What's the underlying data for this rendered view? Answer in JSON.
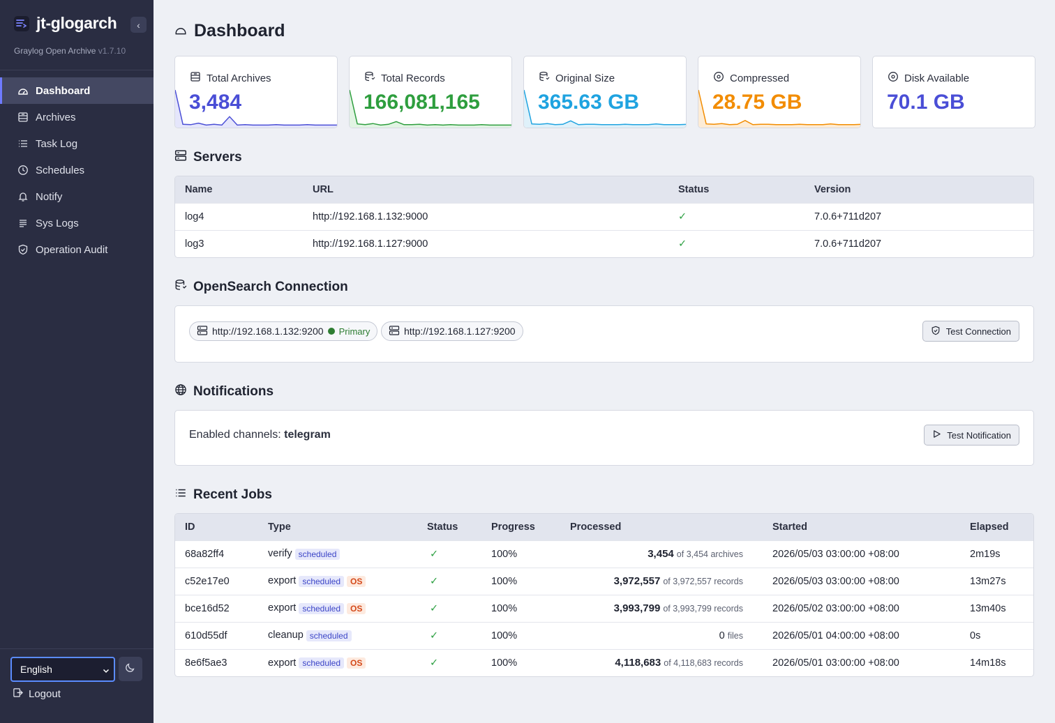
{
  "app": {
    "title": "jt-glogarch",
    "subtitle": "Graylog Open Archive",
    "version": "v1.7.10"
  },
  "sidebar": {
    "collapse_glyph": "‹",
    "items": [
      {
        "label": "Dashboard",
        "icon": "dashboard-icon",
        "active": true
      },
      {
        "label": "Archives",
        "icon": "archive-icon"
      },
      {
        "label": "Task Log",
        "icon": "list-icon"
      },
      {
        "label": "Schedules",
        "icon": "clock-icon"
      },
      {
        "label": "Notify",
        "icon": "bell-icon"
      },
      {
        "label": "Sys Logs",
        "icon": "lines-icon"
      },
      {
        "label": "Operation Audit",
        "icon": "shield-icon"
      }
    ],
    "language": "English",
    "logout": "Logout"
  },
  "page": {
    "title": "Dashboard"
  },
  "stats": [
    {
      "label": "Total Archives",
      "value": "3,484",
      "color": "#4a4ed6",
      "fill": "#e5e6fb",
      "series": [
        95,
        5,
        4,
        8,
        3,
        5,
        3,
        25,
        3,
        4,
        3,
        3,
        3,
        4,
        3,
        3,
        3,
        4,
        3,
        3,
        3,
        3
      ]
    },
    {
      "label": "Total Records",
      "value": "166,081,165",
      "color": "#2e9e3e",
      "fill": "#e2f4e4",
      "series": [
        95,
        6,
        4,
        7,
        3,
        5,
        12,
        4,
        4,
        5,
        3,
        4,
        3,
        4,
        3,
        3,
        3,
        4,
        3,
        3,
        3,
        3
      ]
    },
    {
      "label": "Original Size",
      "value": "365.63 GB",
      "color": "#1fa3e0",
      "fill": "#dff1fa",
      "series": [
        95,
        6,
        5,
        7,
        4,
        5,
        14,
        4,
        5,
        5,
        4,
        4,
        4,
        5,
        4,
        4,
        4,
        6,
        4,
        4,
        4,
        5
      ]
    },
    {
      "label": "Compressed",
      "value": "28.75 GB",
      "color": "#f28c00",
      "fill": "#fdecd6",
      "series": [
        95,
        6,
        5,
        7,
        4,
        5,
        15,
        4,
        5,
        5,
        4,
        4,
        4,
        5,
        4,
        4,
        4,
        6,
        4,
        4,
        4,
        5
      ]
    },
    {
      "label": "Disk Available",
      "value": "70.1 GB",
      "color": "#4a4ed6",
      "fill": "none",
      "series": []
    }
  ],
  "servers": {
    "title": "Servers",
    "columns": [
      "Name",
      "URL",
      "Status",
      "Version"
    ],
    "rows": [
      {
        "name": "log4",
        "url": "http://192.168.1.132:9000",
        "status": "✓",
        "version": "7.0.6+711d207"
      },
      {
        "name": "log3",
        "url": "http://192.168.1.127:9000",
        "status": "✓",
        "version": "7.0.6+711d207"
      }
    ]
  },
  "opensearch": {
    "title": "OpenSearch Connection",
    "nodes": [
      {
        "url": "http://192.168.1.132:9200",
        "tag": "Primary"
      },
      {
        "url": "http://192.168.1.127:9200",
        "tag": ""
      }
    ],
    "test_button": "Test Connection"
  },
  "notifications": {
    "title": "Notifications",
    "label": "Enabled channels:",
    "channels": "telegram",
    "test_button": "Test Notification"
  },
  "jobs": {
    "title": "Recent Jobs",
    "columns": [
      "ID",
      "Type",
      "Status",
      "Progress",
      "Processed",
      "Started",
      "Elapsed"
    ],
    "rows": [
      {
        "id": "68a82ff4",
        "type": "verify",
        "badges": [
          "scheduled"
        ],
        "status": "✓",
        "progress": "100%",
        "processed": "3,454",
        "of": "of 3,454 archives",
        "started": "2026/05/03 03:00:00 +08:00",
        "elapsed": "2m19s"
      },
      {
        "id": "c52e17e0",
        "type": "export",
        "badges": [
          "scheduled",
          "OS"
        ],
        "status": "✓",
        "progress": "100%",
        "processed": "3,972,557",
        "of": "of 3,972,557 records",
        "started": "2026/05/03 03:00:00 +08:00",
        "elapsed": "13m27s"
      },
      {
        "id": "bce16d52",
        "type": "export",
        "badges": [
          "scheduled",
          "OS"
        ],
        "status": "✓",
        "progress": "100%",
        "processed": "3,993,799",
        "of": "of 3,993,799 records",
        "started": "2026/05/02 03:00:00 +08:00",
        "elapsed": "13m40s"
      },
      {
        "id": "610d55df",
        "type": "cleanup",
        "badges": [
          "scheduled"
        ],
        "status": "✓",
        "progress": "100%",
        "processed": "0",
        "of": "files",
        "plain": true,
        "started": "2026/05/01 04:00:00 +08:00",
        "elapsed": "0s"
      },
      {
        "id": "8e6f5ae3",
        "type": "export",
        "badges": [
          "scheduled",
          "OS"
        ],
        "status": "✓",
        "progress": "100%",
        "processed": "4,118,683",
        "of": "of 4,118,683 records",
        "started": "2026/05/01 03:00:00 +08:00",
        "elapsed": "14m18s"
      }
    ]
  }
}
